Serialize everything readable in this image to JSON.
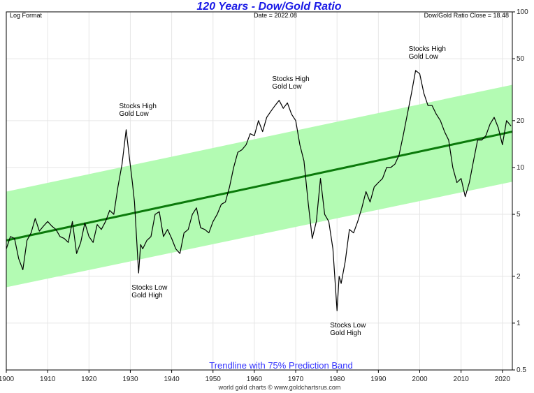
{
  "chart_data": {
    "type": "line",
    "title": "120 Years - Dow/Gold Ratio",
    "header_left": "Log Format",
    "header_center": "Date = 2022.08",
    "header_right": "Dow/Gold Ratio Close = 18.48",
    "subtitle": "Trendline with 75% Prediction Band",
    "footer": "world gold charts © www.goldchartsrus.com",
    "y_scale": "log",
    "xlim": [
      1900,
      2022.4
    ],
    "ylim": [
      0.5,
      100
    ],
    "x_ticks": [
      1900,
      1910,
      1920,
      1930,
      1940,
      1950,
      1960,
      1970,
      1980,
      1990,
      2000,
      2010,
      2020
    ],
    "y_ticks": [
      100,
      50,
      20,
      10,
      5,
      2,
      1,
      0.5
    ],
    "trendline": {
      "start": [
        1900,
        3.4
      ],
      "end": [
        2022.4,
        17
      ]
    },
    "band_upper": {
      "start": [
        1900,
        7.0
      ],
      "end": [
        2022.4,
        34
      ]
    },
    "band_lower": {
      "start": [
        1900,
        1.7
      ],
      "end": [
        2022.4,
        8.1
      ]
    },
    "colors": {
      "band": "#b3fbb3",
      "trend": "#0b7a0b",
      "series": "#000000",
      "title": "#1a1ae6"
    },
    "series": [
      {
        "name": "Dow/Gold Ratio",
        "x": [
          1900,
          1901,
          1902,
          1903,
          1904,
          1905,
          1906,
          1907,
          1908,
          1909,
          1910,
          1911,
          1912,
          1913,
          1914,
          1915,
          1916,
          1917,
          1918,
          1919,
          1920,
          1921,
          1922,
          1923,
          1924,
          1925,
          1926,
          1927,
          1928,
          1929,
          1929.7,
          1930.5,
          1931,
          1932,
          1932.5,
          1933,
          1934,
          1935,
          1936,
          1937,
          1938,
          1939,
          1940,
          1941,
          1942,
          1943,
          1944,
          1945,
          1946,
          1947,
          1948,
          1949,
          1950,
          1951,
          1952,
          1953,
          1954,
          1955,
          1956,
          1957,
          1958,
          1959,
          1960,
          1961,
          1962,
          1963,
          1964,
          1965,
          1966,
          1967,
          1968,
          1969,
          1970,
          1971,
          1972,
          1973,
          1974,
          1975,
          1976,
          1977,
          1978,
          1979,
          1980,
          1980.5,
          1981,
          1982,
          1983,
          1984,
          1985,
          1986,
          1987,
          1988,
          1989,
          1990,
          1991,
          1992,
          1993,
          1994,
          1995,
          1996,
          1997,
          1998,
          1999,
          2000,
          2001,
          2002,
          2003,
          2004,
          2005,
          2006,
          2007,
          2008,
          2009,
          2010,
          2011,
          2012,
          2013,
          2014,
          2015,
          2016,
          2017,
          2018,
          2019,
          2020,
          2021,
          2022.08
        ],
        "values": [
          3.0,
          3.6,
          3.5,
          2.6,
          2.2,
          3.4,
          3.8,
          4.7,
          3.9,
          4.2,
          4.5,
          4.2,
          4.0,
          3.6,
          3.5,
          3.3,
          4.5,
          2.8,
          3.3,
          4.4,
          3.6,
          3.3,
          4.3,
          4.0,
          4.5,
          5.3,
          5.0,
          7.5,
          10.5,
          17.5,
          12,
          8,
          6,
          2.1,
          3.2,
          3.0,
          3.4,
          3.6,
          5.0,
          5.2,
          3.6,
          4.0,
          3.5,
          3.0,
          2.8,
          3.8,
          4.0,
          5.0,
          5.5,
          4.1,
          4.0,
          3.8,
          4.5,
          5.0,
          5.8,
          6.0,
          7.5,
          10,
          12.5,
          13,
          14,
          16.5,
          16,
          20,
          17,
          21,
          23,
          25,
          27,
          24,
          26,
          22,
          20,
          14,
          11,
          6,
          3.5,
          4.5,
          8.5,
          5.0,
          4.5,
          3.0,
          1.2,
          2.0,
          1.8,
          2.5,
          4.0,
          3.8,
          4.5,
          5.5,
          7.0,
          6.0,
          7.5,
          8.0,
          8.5,
          10,
          10,
          10.5,
          12,
          16,
          22,
          30,
          42,
          40,
          30,
          25,
          25,
          22,
          20,
          17,
          15,
          10,
          8.0,
          8.5,
          6.5,
          8.0,
          11,
          15,
          15,
          16,
          19,
          21,
          18,
          14,
          20,
          18.48
        ]
      }
    ],
    "annotations": [
      {
        "x": 1929,
        "y": 18,
        "lines": [
          "Stocks High",
          "Gold Low"
        ],
        "pos": "above"
      },
      {
        "x": 1932,
        "y": 2.1,
        "lines": [
          "Stocks Low",
          "Gold High"
        ],
        "pos": "below"
      },
      {
        "x": 1966,
        "y": 27,
        "lines": [
          "Stocks High",
          "Gold Low"
        ],
        "pos": "above"
      },
      {
        "x": 1980,
        "y": 1.2,
        "lines": [
          "Stocks Low",
          "Gold High"
        ],
        "pos": "below"
      },
      {
        "x": 1999,
        "y": 42,
        "lines": [
          "Stocks High",
          "Gold Low"
        ],
        "pos": "above"
      }
    ]
  }
}
